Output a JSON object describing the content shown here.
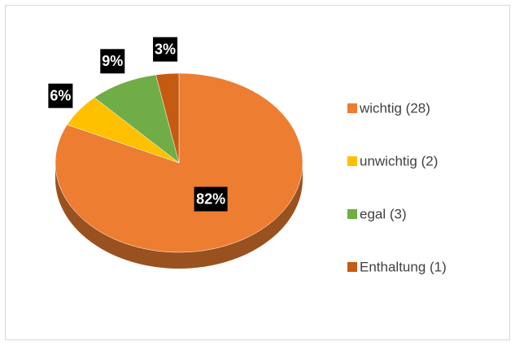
{
  "chart_data": {
    "type": "pie",
    "categories": [
      "wichtig (28)",
      "unwichtig (2)",
      "egal (3)",
      "Enthaltung (1)"
    ],
    "values": [
      82,
      6,
      9,
      3
    ],
    "value_labels": [
      "82%",
      "6%",
      "9%",
      "3%"
    ],
    "colors": [
      "#ED7D31",
      "#FFC000",
      "#70AD47",
      "#C55A11"
    ],
    "legend": "right"
  }
}
